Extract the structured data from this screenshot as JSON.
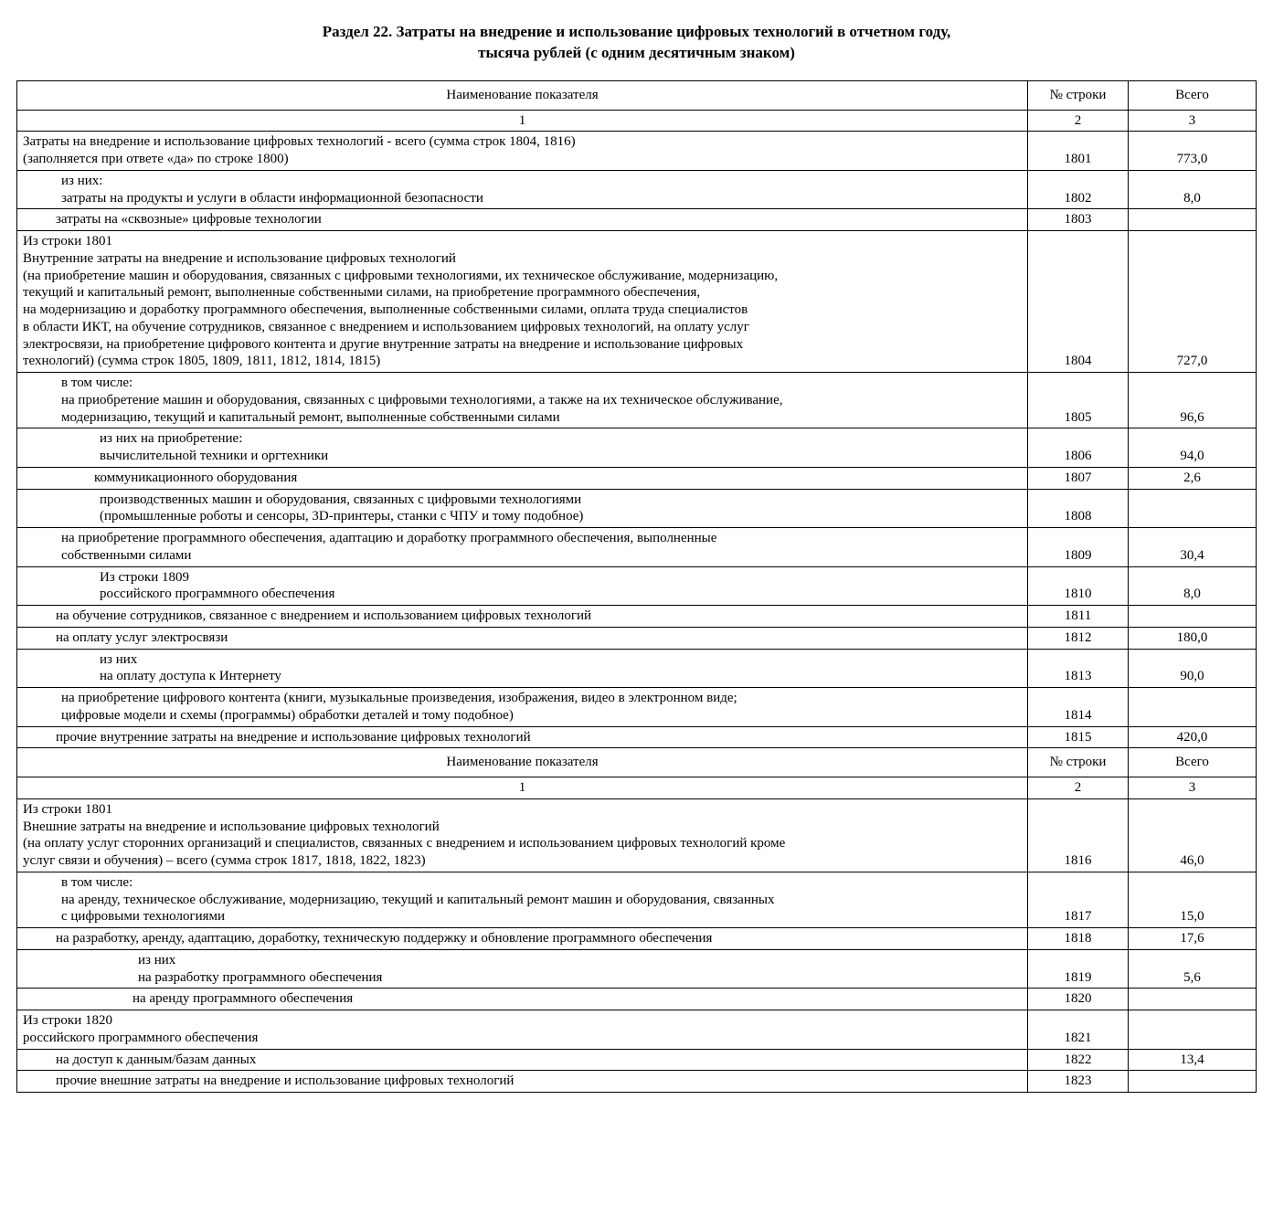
{
  "title_line1": "Раздел 22. Затраты на внедрение и использование цифровых технологий в отчетном году,",
  "title_line2": "тысяча рублей (с одним десятичным знаком)",
  "header": {
    "name": "Наименование показателя",
    "line": "№ строки",
    "total": "Всего"
  },
  "colnum": {
    "name": "1",
    "line": "2",
    "total": "3"
  },
  "r": {
    "r1801": {
      "t1": "Затраты на внедрение и использование цифровых технологий - всего (сумма строк 1804, 1816)",
      "t2": "(заполняется при ответе «да» по строке 1800)",
      "line": "1801",
      "val": "773,0"
    },
    "iz_nih": "из них:",
    "r1802": {
      "t": "затраты на продукты и услуги в области информационной безопасности",
      "line": "1802",
      "val": "8,0"
    },
    "r1803": {
      "t": "затраты на «сквозные» цифровые технологии",
      "line": "1803",
      "val": ""
    },
    "r1804": {
      "t1": "Из строки 1801",
      "t2": "Внутренние затраты на внедрение и использование цифровых технологий",
      "t3": "(на приобретение машин и оборудования, связанных с цифровыми технологиями, их техническое обслуживание, модернизацию,",
      "t4": "текущий и капитальный ремонт, выполненные собственными силами, на приобретение программного обеспечения,",
      "t5": "на модернизацию и доработку программного обеспечения, выполненные собственными силами, оплата труда специалистов",
      "t6": "в области ИКТ, на обучение сотрудников, связанное с внедрением и использованием цифровых технологий, на оплату услуг",
      "t7": "электросвязи, на приобретение цифрового контента и другие внутренние затраты на внедрение и использование цифровых",
      "t8": "технологий) (сумма строк 1805, 1809, 1811, 1812, 1814, 1815)",
      "line": "1804",
      "val": "727,0"
    },
    "vtomchisle": "в том числе:",
    "r1805": {
      "t1": "на приобретение машин и оборудования, связанных с цифровыми технологиями, а также на их техническое обслуживание,",
      "t2": "модернизацию, текущий и капитальный ремонт, выполненные собственными силами",
      "line": "1805",
      "val": "96,6"
    },
    "iz_nih_priobr": "из них на приобретение:",
    "r1806": {
      "t": "вычислительной техники и оргтехники",
      "line": "1806",
      "val": "94,0"
    },
    "r1807": {
      "t": "коммуникационного оборудования",
      "line": "1807",
      "val": "2,6"
    },
    "r1808": {
      "t1": "производственных машин и оборудования, связанных с цифровыми технологиями",
      "t2": "(промышленные роботы и сенсоры, 3D-принтеры, станки с ЧПУ и тому подобное)",
      "line": "1808",
      "val": ""
    },
    "r1809": {
      "t1": "на приобретение программного обеспечения, адаптацию и доработку программного обеспечения, выполненные",
      "t2": "собственными силами",
      "line": "1809",
      "val": "30,4"
    },
    "r1810": {
      "t1": "Из строки 1809",
      "t2": "российского программного обеспечения",
      "line": "1810",
      "val": "8,0"
    },
    "r1811": {
      "t": "на обучение сотрудников, связанное с внедрением и использованием цифровых технологий",
      "line": "1811",
      "val": ""
    },
    "r1812": {
      "t": "на оплату услуг электросвязи",
      "line": "1812",
      "val": "180,0"
    },
    "iz_nih2": "из них",
    "r1813": {
      "t": "на оплату доступа к Интернету",
      "line": "1813",
      "val": "90,0"
    },
    "r1814": {
      "t1": "на приобретение цифрового контента (книги, музыкальные произведения, изображения, видео в электронном виде;",
      "t2": "цифровые модели и схемы (программы) обработки деталей и тому подобное)",
      "line": "1814",
      "val": ""
    },
    "r1815": {
      "t": "прочие внутренние затраты на внедрение и использование цифровых технологий",
      "line": "1815",
      "val": "420,0"
    },
    "r1816": {
      "t1": "Из строки 1801",
      "t2": "Внешние затраты на внедрение и использование цифровых технологий",
      "t3": "(на оплату услуг сторонних организаций и специалистов, связанных с внедрением и использованием цифровых технологий кроме",
      "t4": "услуг связи и обучения) – всего (сумма строк 1817, 1818, 1822, 1823)",
      "line": "1816",
      "val": "46,0"
    },
    "r1817": {
      "t1": "на аренду, техническое обслуживание, модернизацию, текущий и капитальный ремонт машин и оборудования, связанных",
      "t2": "с цифровыми технологиями",
      "line": "1817",
      "val": "15,0"
    },
    "r1818": {
      "t": "на разработку, аренду, адаптацию, доработку, техническую поддержку и обновление программного обеспечения",
      "line": "1818",
      "val": "17,6"
    },
    "r1819": {
      "t": "на разработку программного обеспечения",
      "line": "1819",
      "val": "5,6"
    },
    "r1820": {
      "t": "на аренду программного обеспечения",
      "line": "1820",
      "val": ""
    },
    "r1821": {
      "t1": "Из строки 1820",
      "t2": "российского программного обеспечения",
      "line": "1821",
      "val": ""
    },
    "r1822": {
      "t": "на доступ к данным/базам данных",
      "line": "1822",
      "val": "13,4"
    },
    "r1823": {
      "t": "прочие внешние затраты на внедрение и использование цифровых технологий",
      "line": "1823",
      "val": ""
    }
  }
}
